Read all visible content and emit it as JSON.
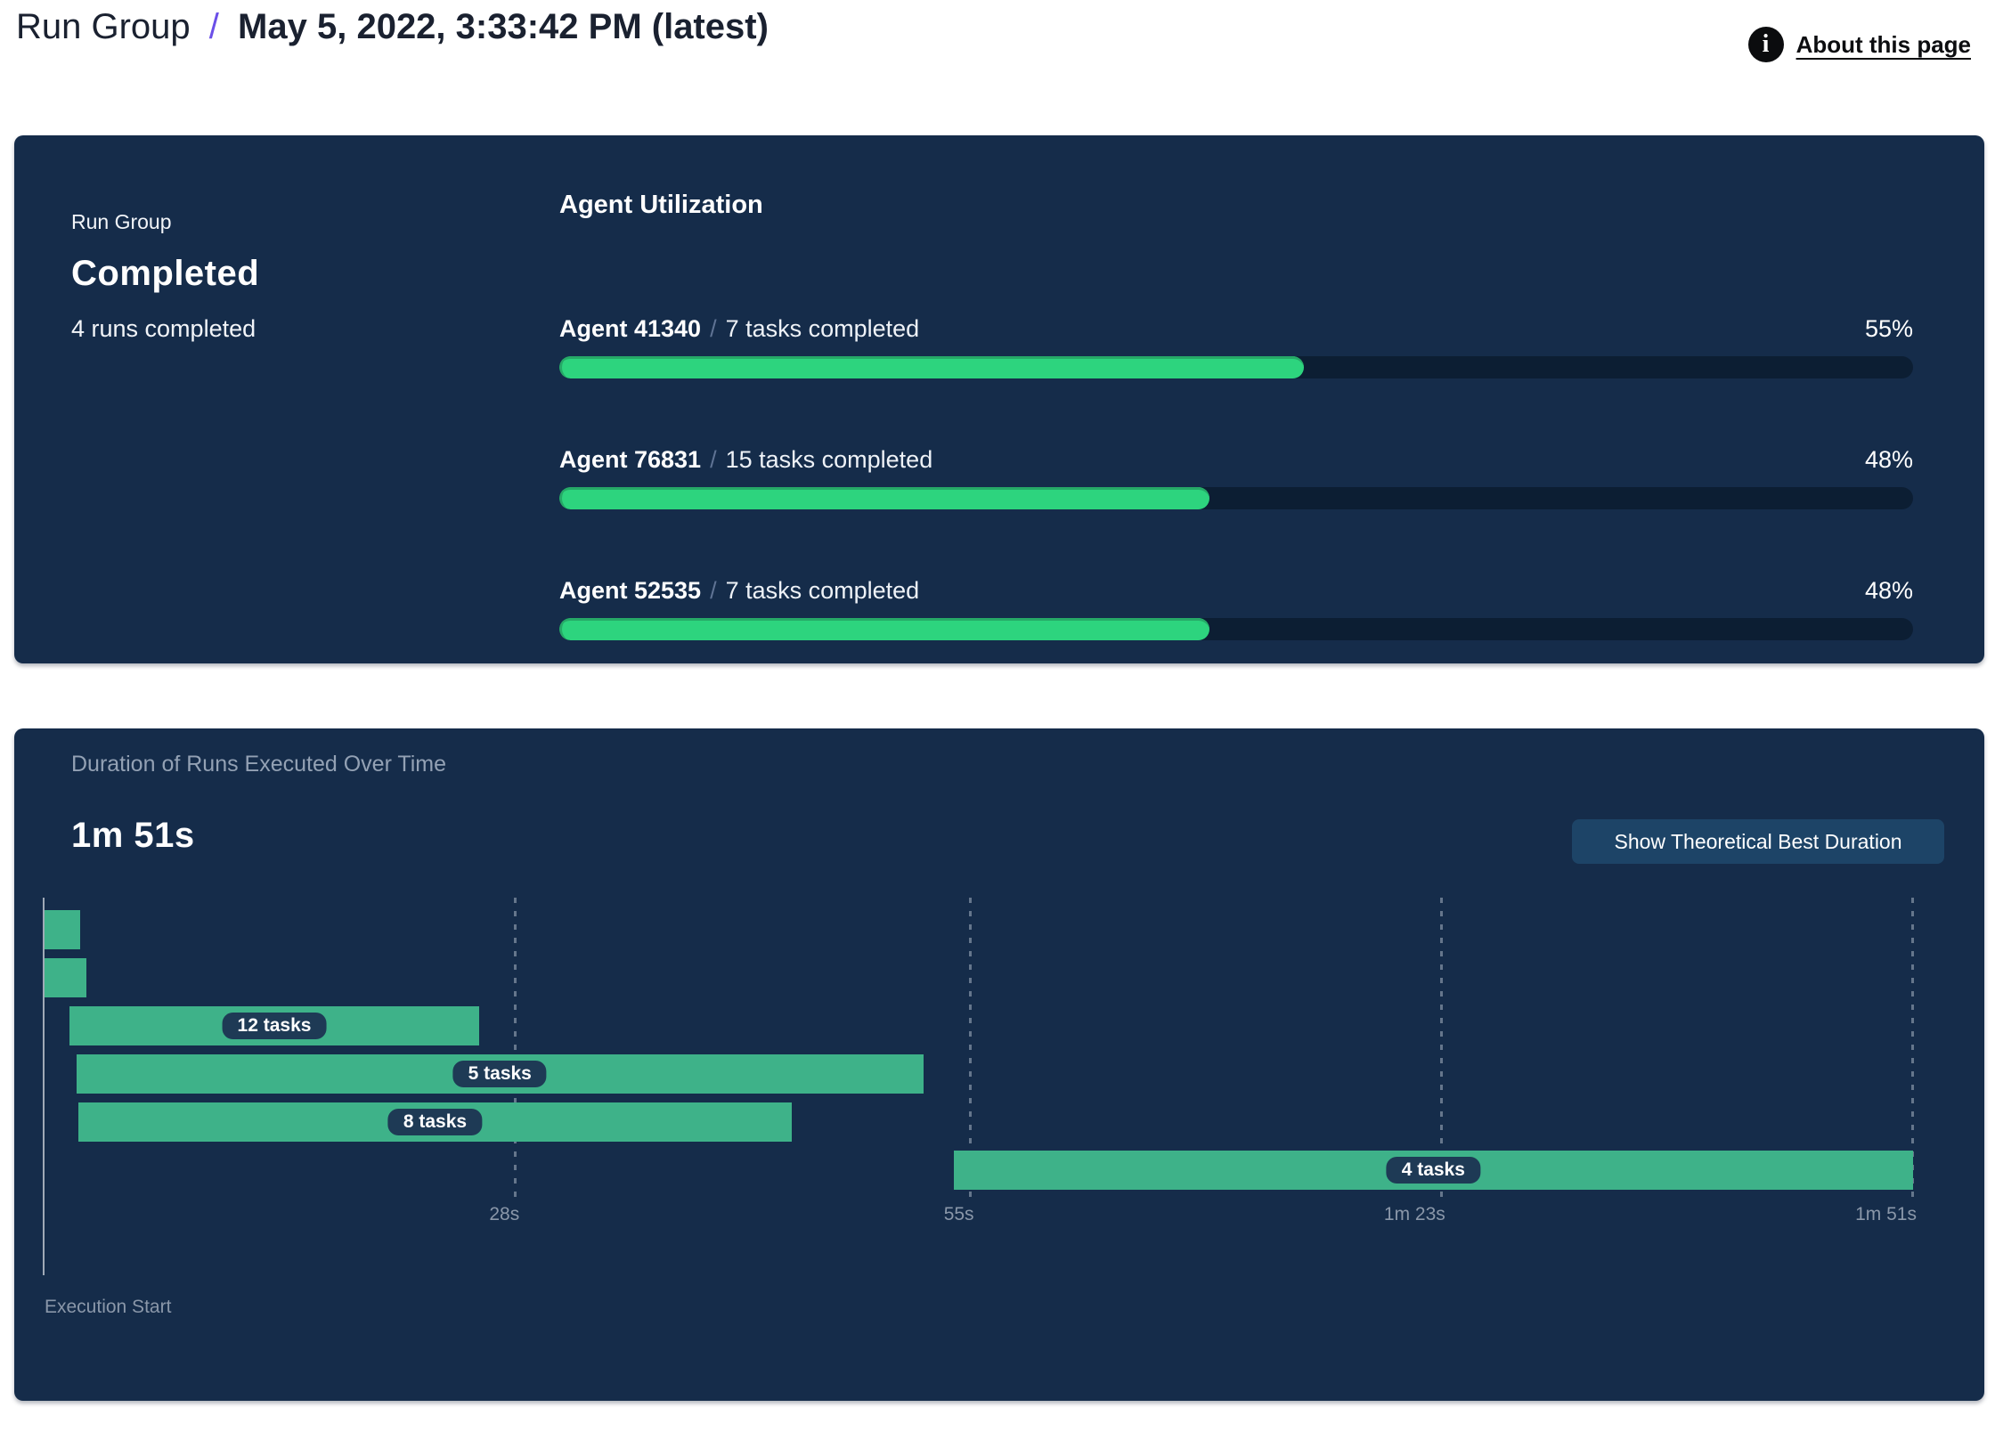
{
  "header": {
    "breadcrumb": "Run Group",
    "separator": "/",
    "title": "May 5, 2022, 3:33:42 PM (latest)",
    "about_label": "About this page"
  },
  "run_group_panel": {
    "eyebrow": "Run Group",
    "status": "Completed",
    "runs_completed": "4 runs completed",
    "utilization_title": "Agent Utilization",
    "agents": [
      {
        "name": "Agent 41340",
        "separator": "/",
        "tasks": "7 tasks completed",
        "percent": 55,
        "percent_label": "55%"
      },
      {
        "name": "Agent 76831",
        "separator": "/",
        "tasks": "15 tasks completed",
        "percent": 48,
        "percent_label": "48%"
      },
      {
        "name": "Agent 52535",
        "separator": "/",
        "tasks": "7 tasks completed",
        "percent": 48,
        "percent_label": "48%"
      }
    ]
  },
  "duration_panel": {
    "subtitle": "Duration of Runs Executed Over Time",
    "duration": "1m 51s",
    "button_label": "Show Theoretical Best Duration"
  },
  "chart_data": {
    "type": "gantt",
    "title": "Duration of Runs Executed Over Time",
    "total_duration_label": "1m 51s",
    "xlabel": "Execution Start",
    "x_axis_seconds_max": 111,
    "x_ticks": [
      {
        "seconds": 28,
        "label": "28s"
      },
      {
        "seconds": 55,
        "label": "55s"
      },
      {
        "seconds": 83,
        "label": "1m 23s"
      },
      {
        "seconds": 111,
        "label": "1m 51s"
      }
    ],
    "runs": [
      {
        "start_s": 0,
        "end_s": 2.1,
        "tasks_label": null
      },
      {
        "start_s": 0,
        "end_s": 2.5,
        "tasks_label": null
      },
      {
        "start_s": 1.5,
        "end_s": 25.8,
        "tasks_label": "12 tasks"
      },
      {
        "start_s": 1.9,
        "end_s": 52.2,
        "tasks_label": "5 tasks"
      },
      {
        "start_s": 2.0,
        "end_s": 44.4,
        "tasks_label": "8 tasks"
      },
      {
        "start_s": 54.0,
        "end_s": 111,
        "tasks_label": "4 tasks"
      }
    ]
  },
  "colors": {
    "panel_navy": "#152c4a",
    "progress_green": "#2dd47e",
    "progress_track": "#0c1e33",
    "gantt_green": "#3eb289",
    "badge_navy": "#1e3a55",
    "accent_purple": "#6b4fe8",
    "muted_text": "#8a97a9",
    "button_blue": "#1d4467"
  }
}
